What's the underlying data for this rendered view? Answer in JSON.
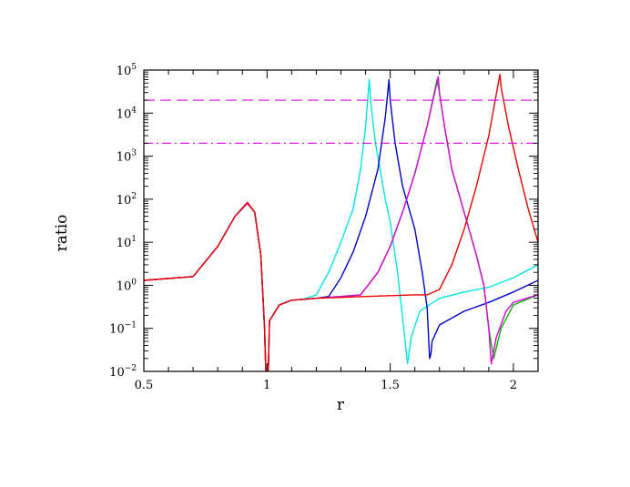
{
  "chart_data": {
    "type": "line",
    "title": "",
    "xlabel": "r",
    "ylabel": "ratio",
    "xlim": [
      0.5,
      2.1
    ],
    "ylim": [
      0.01,
      100000
    ],
    "yscale": "log",
    "grid": false,
    "legend": "none",
    "x_ticks": [
      {
        "value": 0.5,
        "label": "0.5"
      },
      {
        "value": 1,
        "label": "1"
      },
      {
        "value": 1.5,
        "label": "1.5"
      },
      {
        "value": 2,
        "label": "2"
      }
    ],
    "y_ticks": [
      {
        "value": 0.01,
        "base": "10",
        "exp": "−2"
      },
      {
        "value": 0.1,
        "base": "10",
        "exp": "−1"
      },
      {
        "value": 1,
        "base": "10",
        "exp": "0"
      },
      {
        "value": 10,
        "base": "10",
        "exp": "1"
      },
      {
        "value": 100,
        "base": "10",
        "exp": "2"
      },
      {
        "value": 1000,
        "base": "10",
        "exp": "3"
      },
      {
        "value": 10000,
        "base": "10",
        "exp": "4"
      },
      {
        "value": 100000,
        "base": "10",
        "exp": "5"
      }
    ],
    "reference_lines": [
      {
        "y": 20000,
        "style": "dashed",
        "color": "#dd00dd"
      },
      {
        "y": 2000,
        "style": "dashdot",
        "color": "#dd00dd"
      }
    ],
    "series": [
      {
        "color": "#00e5e5",
        "points": [
          [
            0.5,
            1.3
          ],
          [
            0.7,
            1.6
          ],
          [
            0.8,
            8
          ],
          [
            0.87,
            40
          ],
          [
            0.92,
            80
          ],
          [
            0.95,
            50
          ],
          [
            0.975,
            5
          ],
          [
            0.99,
            0.1
          ],
          [
            0.995,
            0.01
          ],
          [
            1.005,
            0.01
          ],
          [
            1.01,
            0.15
          ],
          [
            1.05,
            0.35
          ],
          [
            1.1,
            0.45
          ],
          [
            1.15,
            0.48
          ],
          [
            1.2,
            0.6
          ],
          [
            1.25,
            2
          ],
          [
            1.3,
            10
          ],
          [
            1.35,
            60
          ],
          [
            1.38,
            500
          ],
          [
            1.4,
            5000
          ],
          [
            1.415,
            60000
          ],
          [
            1.42,
            20000
          ],
          [
            1.44,
            2000
          ],
          [
            1.48,
            100
          ],
          [
            1.5,
            30
          ],
          [
            1.53,
            2
          ],
          [
            1.555,
            0.1
          ],
          [
            1.57,
            0.015
          ],
          [
            1.585,
            0.06
          ],
          [
            1.62,
            0.25
          ],
          [
            1.7,
            0.5
          ],
          [
            1.8,
            0.7
          ],
          [
            1.9,
            0.9
          ],
          [
            2,
            1.5
          ],
          [
            2.1,
            3
          ]
        ]
      },
      {
        "color": "#0000cc",
        "points": [
          [
            0.5,
            1.3
          ],
          [
            0.7,
            1.6
          ],
          [
            0.8,
            8
          ],
          [
            0.87,
            40
          ],
          [
            0.92,
            80
          ],
          [
            0.95,
            50
          ],
          [
            0.975,
            5
          ],
          [
            0.99,
            0.1
          ],
          [
            0.995,
            0.01
          ],
          [
            1.005,
            0.01
          ],
          [
            1.01,
            0.15
          ],
          [
            1.05,
            0.35
          ],
          [
            1.1,
            0.45
          ],
          [
            1.2,
            0.5
          ],
          [
            1.25,
            0.55
          ],
          [
            1.3,
            1.5
          ],
          [
            1.35,
            6
          ],
          [
            1.4,
            40
          ],
          [
            1.45,
            500
          ],
          [
            1.48,
            8000
          ],
          [
            1.495,
            60000
          ],
          [
            1.5,
            20000
          ],
          [
            1.52,
            2000
          ],
          [
            1.55,
            200
          ],
          [
            1.6,
            20
          ],
          [
            1.63,
            2
          ],
          [
            1.65,
            0.3
          ],
          [
            1.66,
            0.02
          ],
          [
            1.665,
            0.025
          ],
          [
            1.67,
            0.05
          ],
          [
            1.7,
            0.12
          ],
          [
            1.8,
            0.25
          ],
          [
            1.9,
            0.4
          ],
          [
            2,
            0.7
          ],
          [
            2.1,
            1.3
          ]
        ]
      },
      {
        "color": "#00bb00",
        "points": [
          [
            0.5,
            1.3
          ],
          [
            0.7,
            1.6
          ],
          [
            0.8,
            8
          ],
          [
            0.87,
            40
          ],
          [
            0.92,
            80
          ],
          [
            0.95,
            50
          ],
          [
            0.975,
            5
          ],
          [
            0.99,
            0.1
          ],
          [
            0.995,
            0.01
          ],
          [
            1.005,
            0.01
          ],
          [
            1.01,
            0.15
          ],
          [
            1.05,
            0.35
          ],
          [
            1.1,
            0.45
          ],
          [
            1.2,
            0.5
          ],
          [
            1.3,
            0.55
          ],
          [
            1.38,
            0.6
          ],
          [
            1.45,
            2
          ],
          [
            1.5,
            8
          ],
          [
            1.55,
            50
          ],
          [
            1.6,
            400
          ],
          [
            1.65,
            5000
          ],
          [
            1.69,
            60000
          ],
          [
            1.7,
            30000
          ],
          [
            1.72,
            5000
          ],
          [
            1.75,
            500
          ],
          [
            1.8,
            50
          ],
          [
            1.85,
            5
          ],
          [
            1.88,
            1
          ],
          [
            1.9,
            0.1
          ],
          [
            1.92,
            0.02
          ],
          [
            1.95,
            0.1
          ],
          [
            2,
            0.35
          ],
          [
            2.1,
            0.6
          ]
        ]
      },
      {
        "color": "#dd00dd",
        "points": [
          [
            0.5,
            1.3
          ],
          [
            0.7,
            1.6
          ],
          [
            0.8,
            8
          ],
          [
            0.87,
            40
          ],
          [
            0.92,
            80
          ],
          [
            0.95,
            50
          ],
          [
            0.975,
            5
          ],
          [
            0.99,
            0.1
          ],
          [
            0.995,
            0.01
          ],
          [
            1.005,
            0.01
          ],
          [
            1.01,
            0.15
          ],
          [
            1.05,
            0.35
          ],
          [
            1.1,
            0.45
          ],
          [
            1.2,
            0.5
          ],
          [
            1.3,
            0.55
          ],
          [
            1.38,
            0.6
          ],
          [
            1.45,
            2
          ],
          [
            1.5,
            8
          ],
          [
            1.55,
            50
          ],
          [
            1.6,
            400
          ],
          [
            1.65,
            5000
          ],
          [
            1.695,
            70000
          ],
          [
            1.7,
            30000
          ],
          [
            1.72,
            5000
          ],
          [
            1.75,
            500
          ],
          [
            1.8,
            50
          ],
          [
            1.85,
            5
          ],
          [
            1.88,
            1
          ],
          [
            1.9,
            0.1
          ],
          [
            1.91,
            0.015
          ],
          [
            1.93,
            0.06
          ],
          [
            1.97,
            0.25
          ],
          [
            2,
            0.4
          ],
          [
            2.1,
            0.6
          ]
        ]
      },
      {
        "color": "#ee0000",
        "points": [
          [
            0.5,
            1.3
          ],
          [
            0.7,
            1.6
          ],
          [
            0.8,
            8
          ],
          [
            0.87,
            40
          ],
          [
            0.92,
            85
          ],
          [
            0.95,
            50
          ],
          [
            0.975,
            5
          ],
          [
            0.99,
            0.1
          ],
          [
            0.995,
            0.01
          ],
          [
            1.005,
            0.01
          ],
          [
            1.01,
            0.15
          ],
          [
            1.05,
            0.35
          ],
          [
            1.1,
            0.45
          ],
          [
            1.2,
            0.5
          ],
          [
            1.4,
            0.55
          ],
          [
            1.6,
            0.6
          ],
          [
            1.65,
            0.6
          ],
          [
            1.7,
            0.8
          ],
          [
            1.75,
            3
          ],
          [
            1.8,
            20
          ],
          [
            1.85,
            200
          ],
          [
            1.9,
            3000
          ],
          [
            1.945,
            80000
          ],
          [
            1.95,
            40000
          ],
          [
            1.98,
            5000
          ],
          [
            2.02,
            500
          ],
          [
            2.06,
            60
          ],
          [
            2.1,
            10
          ]
        ]
      }
    ]
  }
}
